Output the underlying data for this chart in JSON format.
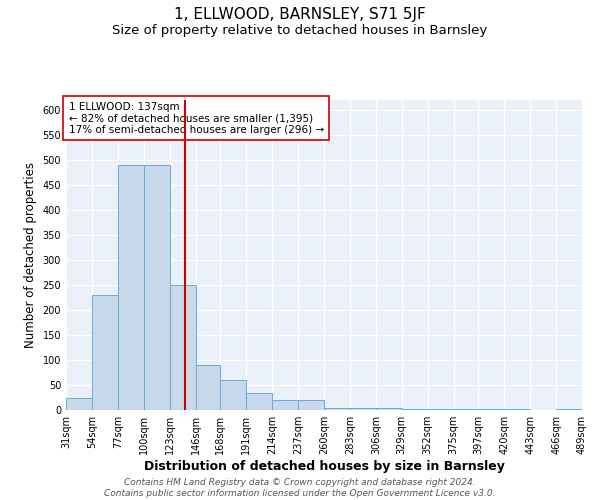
{
  "title": "1, ELLWOOD, BARNSLEY, S71 5JF",
  "subtitle": "Size of property relative to detached houses in Barnsley",
  "xlabel": "Distribution of detached houses by size in Barnsley",
  "ylabel": "Number of detached properties",
  "bar_color": "#c8d9ec",
  "bar_edge_color": "#6aaad4",
  "background_color": "#eaf0f8",
  "annotation_text": "1 ELLWOOD: 137sqm\n← 82% of detached houses are smaller (1,395)\n17% of semi-detached houses are larger (296) →",
  "vline_x": 137,
  "vline_color": "#cc0000",
  "bins": [
    31,
    54,
    77,
    100,
    123,
    146,
    168,
    191,
    214,
    237,
    260,
    283,
    306,
    329,
    352,
    375,
    397,
    420,
    443,
    466,
    489
  ],
  "bin_labels": [
    "31sqm",
    "54sqm",
    "77sqm",
    "100sqm",
    "123sqm",
    "146sqm",
    "168sqm",
    "191sqm",
    "214sqm",
    "237sqm",
    "260sqm",
    "283sqm",
    "306sqm",
    "329sqm",
    "352sqm",
    "375sqm",
    "397sqm",
    "420sqm",
    "443sqm",
    "466sqm",
    "489sqm"
  ],
  "bar_heights": [
    25,
    230,
    490,
    490,
    250,
    90,
    60,
    35,
    20,
    20,
    5,
    5,
    5,
    2,
    2,
    2,
    2,
    2,
    0,
    2,
    0
  ],
  "ylim": [
    0,
    620
  ],
  "yticks": [
    0,
    50,
    100,
    150,
    200,
    250,
    300,
    350,
    400,
    450,
    500,
    550,
    600
  ],
  "footer_text": "Contains HM Land Registry data © Crown copyright and database right 2024.\nContains public sector information licensed under the Open Government Licence v3.0.",
  "title_fontsize": 11,
  "subtitle_fontsize": 9.5,
  "xlabel_fontsize": 9,
  "ylabel_fontsize": 8.5,
  "tick_fontsize": 7,
  "footer_fontsize": 6.5,
  "annot_fontsize": 7.5
}
